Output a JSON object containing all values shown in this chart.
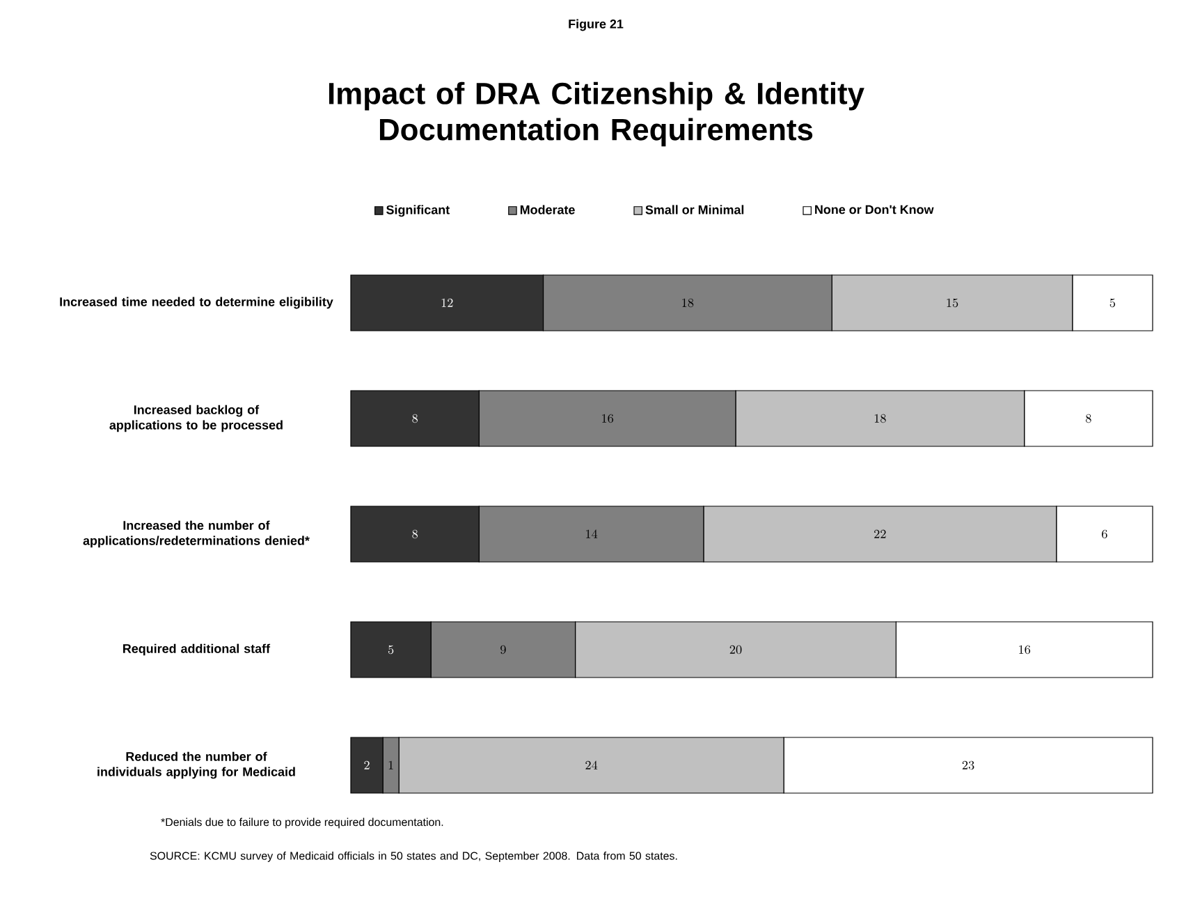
{
  "chart_data": {
    "type": "bar",
    "orientation": "horizontal",
    "stacked": true,
    "data_labels": true,
    "legend": "top",
    "tick_labels": "y",
    "subtitle": "Figure 21",
    "title": "Impact of DRA Citizenship & Identity Documentation Requirements",
    "categories": [
      "Increased time needed to determine eligibility",
      "Increased backlog of applications to be processed",
      "Increased the number of applications/redeterminations denied*",
      "Required additional staff",
      "Reduced the number of individuals applying for Medicaid"
    ],
    "series": [
      {
        "name": "Significant",
        "color": "#333333",
        "values": [
          12,
          8,
          8,
          5,
          2
        ]
      },
      {
        "name": "Moderate",
        "color": "#808080",
        "values": [
          18,
          16,
          14,
          9,
          1
        ]
      },
      {
        "name": "Small or Minimal",
        "color": "#c0c0c0",
        "values": [
          15,
          18,
          22,
          20,
          24
        ]
      },
      {
        "name": "None or Don't Know",
        "color": "#ffffff",
        "values": [
          5,
          8,
          6,
          16,
          23
        ]
      }
    ],
    "annotations": [
      "*Denials due to failure to provide required documentation.",
      "SOURCE: KCMU survey of Medicaid officials in 50 states and DC, September 2008. Data from 50 states."
    ]
  }
}
